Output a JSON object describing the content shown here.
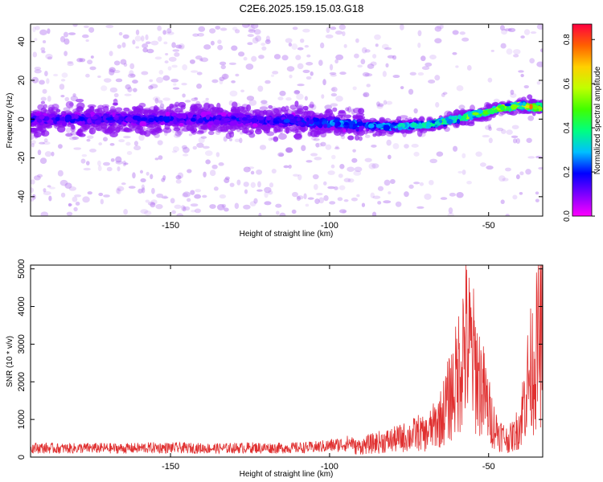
{
  "title": "C2E6.2025.159.15.03.G18",
  "colors": {
    "snr_line": "#e03030",
    "spectrogram_low": "#e6d6f8",
    "spectrogram_mid": "#7a00ff",
    "spectrogram_high": "#ff2060"
  },
  "chart_data": [
    {
      "type": "heatmap",
      "title": "C2E6.2025.159.15.03.G18",
      "xlabel": "Height of straight line (km)",
      "ylabel": "Frequency (Hz)",
      "xlim": [
        -194,
        -33
      ],
      "ylim": [
        -50,
        49
      ],
      "xticks": [
        -150,
        -100,
        -50
      ],
      "yticks": [
        -40,
        -20,
        0,
        20,
        40
      ],
      "grid": false,
      "colorbar": {
        "label": "Normalized spectral amplitude",
        "range": [
          0,
          0.87
        ],
        "ticks": [
          0.0,
          0.2,
          0.4,
          0.6,
          0.8
        ],
        "colormap": [
          "#ff00ff",
          "#7f00ff",
          "#0000ff",
          "#00bfff",
          "#00ff80",
          "#40ff00",
          "#c0ff00",
          "#ffd000",
          "#ff6000",
          "#ff0040"
        ]
      },
      "signal_track": {
        "x": [
          -194,
          -170,
          -150,
          -130,
          -110,
          -100,
          -90,
          -80,
          -70,
          -60,
          -50,
          -45,
          -40,
          -35
        ],
        "frequency": [
          0,
          0,
          0,
          0,
          -1,
          -2,
          -3,
          -4,
          -3,
          0,
          4,
          6,
          7,
          6
        ],
        "peak_amplitude": [
          0.2,
          0.2,
          0.2,
          0.2,
          0.25,
          0.3,
          0.35,
          0.4,
          0.45,
          0.6,
          0.65,
          0.7,
          0.75,
          0.85
        ]
      }
    },
    {
      "type": "line",
      "xlabel": "Height of straight line (km)",
      "ylabel": "SNR (10 * v/v)",
      "xlim": [
        -194,
        -33
      ],
      "ylim": [
        0,
        5100
      ],
      "xticks": [
        -150,
        -100,
        -50
      ],
      "yticks": [
        0,
        1000,
        2000,
        3000,
        4000,
        5000
      ],
      "grid": false,
      "series": [
        {
          "color": "#e03030",
          "x": [
            -194,
            -185,
            -175,
            -165,
            -155,
            -145,
            -135,
            -125,
            -115,
            -105,
            -100,
            -95,
            -90,
            -85,
            -80,
            -75,
            -72,
            -70,
            -67,
            -65,
            -62,
            -60,
            -58,
            -57,
            -56,
            -55,
            -54,
            -52,
            -50,
            -48,
            -46,
            -44,
            -42,
            -40,
            -39,
            -38,
            -37,
            -36,
            -35,
            -34,
            -33
          ],
          "values": [
            250,
            230,
            240,
            230,
            250,
            240,
            230,
            250,
            240,
            260,
            300,
            350,
            450,
            600,
            700,
            850,
            1000,
            900,
            1300,
            1600,
            2500,
            3200,
            4500,
            4700,
            4400,
            4100,
            3600,
            2800,
            1900,
            1200,
            900,
            700,
            900,
            1400,
            2200,
            2900,
            3400,
            3800,
            4300,
            4700,
            5050
          ]
        }
      ]
    }
  ]
}
